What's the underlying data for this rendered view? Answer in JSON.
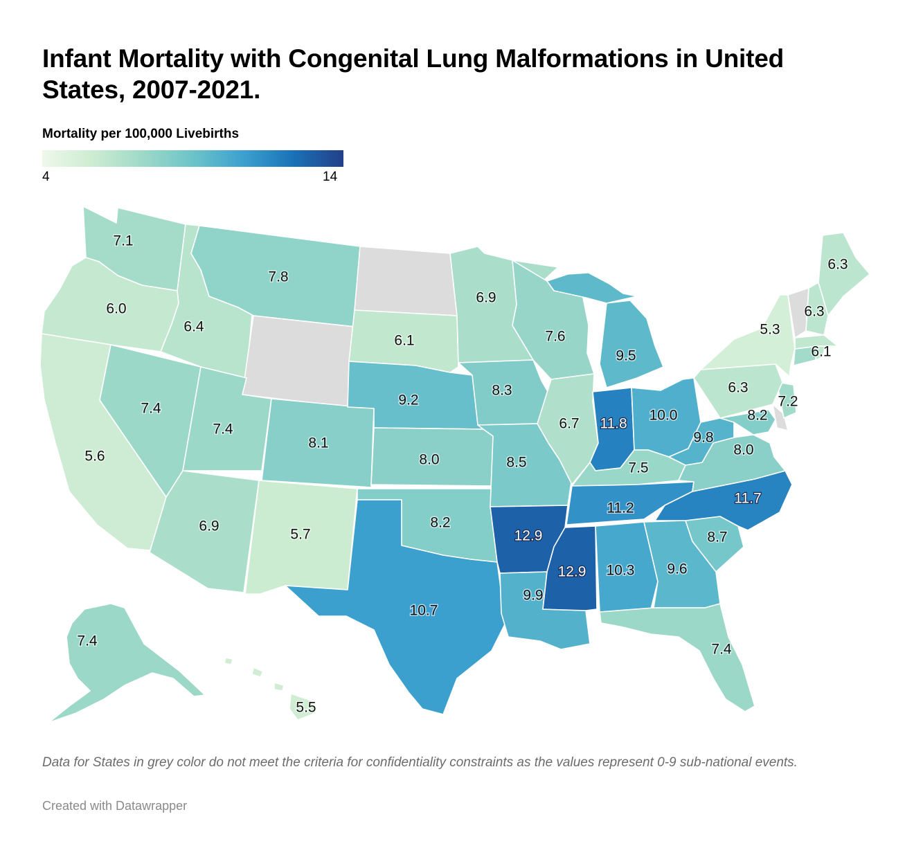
{
  "title": "Infant Mortality with Congenital Lung Malformations in United States, 2007-2021.",
  "legend": {
    "title": "Mortality per 100,000 Livebirths",
    "min_label": "4",
    "max_label": "14"
  },
  "footnote": "Data for States in grey color do not meet the criteria for confidentiality constraints as the values represent 0-9 sub-national events.",
  "credit": "Created with Datawrapper",
  "colors": {
    "no_data": "#dcdcdc",
    "scale": [
      "#eef8ea",
      "#cdecd2",
      "#9ed9c8",
      "#6cc3c9",
      "#3da1cf",
      "#1a72b7",
      "#233f8a"
    ]
  },
  "chart_data": {
    "type": "choropleth",
    "value_range": [
      4,
      14
    ],
    "states": [
      {
        "name": "Washington",
        "value": 7.1,
        "label": "7.1"
      },
      {
        "name": "Oregon",
        "value": 6.0,
        "label": "6.0"
      },
      {
        "name": "California",
        "value": 5.6,
        "label": "5.6"
      },
      {
        "name": "Nevada",
        "value": 7.4,
        "label": "7.4"
      },
      {
        "name": "Idaho",
        "value": 6.4,
        "label": "6.4"
      },
      {
        "name": "Montana",
        "value": 7.8,
        "label": "7.8"
      },
      {
        "name": "Wyoming",
        "value": null,
        "label": ""
      },
      {
        "name": "Utah",
        "value": 7.4,
        "label": "7.4"
      },
      {
        "name": "Arizona",
        "value": 6.9,
        "label": "6.9"
      },
      {
        "name": "Colorado",
        "value": 8.1,
        "label": "8.1"
      },
      {
        "name": "New Mexico",
        "value": 5.7,
        "label": "5.7"
      },
      {
        "name": "North Dakota",
        "value": null,
        "label": ""
      },
      {
        "name": "South Dakota",
        "value": 6.1,
        "label": "6.1"
      },
      {
        "name": "Nebraska",
        "value": 9.2,
        "label": "9.2"
      },
      {
        "name": "Kansas",
        "value": 8.0,
        "label": "8.0"
      },
      {
        "name": "Oklahoma",
        "value": 8.2,
        "label": "8.2"
      },
      {
        "name": "Texas",
        "value": 10.7,
        "label": "10.7"
      },
      {
        "name": "Minnesota",
        "value": 6.9,
        "label": "6.9"
      },
      {
        "name": "Iowa",
        "value": 8.3,
        "label": "8.3"
      },
      {
        "name": "Missouri",
        "value": 8.5,
        "label": "8.5"
      },
      {
        "name": "Arkansas",
        "value": 12.9,
        "label": "12.9"
      },
      {
        "name": "Louisiana",
        "value": 9.9,
        "label": "9.9"
      },
      {
        "name": "Wisconsin",
        "value": 7.6,
        "label": "7.6"
      },
      {
        "name": "Illinois",
        "value": 6.7,
        "label": "6.7"
      },
      {
        "name": "Michigan",
        "value": 9.5,
        "label": "9.5"
      },
      {
        "name": "Indiana",
        "value": 11.8,
        "label": "11.8"
      },
      {
        "name": "Ohio",
        "value": 10.0,
        "label": "10.0"
      },
      {
        "name": "Kentucky",
        "value": 7.5,
        "label": "7.5"
      },
      {
        "name": "Tennessee",
        "value": 11.2,
        "label": "11.2"
      },
      {
        "name": "Mississippi",
        "value": 12.9,
        "label": "12.9"
      },
      {
        "name": "Alabama",
        "value": 10.3,
        "label": "10.3"
      },
      {
        "name": "Georgia",
        "value": 9.6,
        "label": "9.6"
      },
      {
        "name": "Florida",
        "value": 7.4,
        "label": "7.4"
      },
      {
        "name": "South Carolina",
        "value": 8.7,
        "label": "8.7"
      },
      {
        "name": "North Carolina",
        "value": 11.7,
        "label": "11.7"
      },
      {
        "name": "Virginia",
        "value": 8.0,
        "label": "8.0"
      },
      {
        "name": "West Virginia",
        "value": 9.8,
        "label": "9.8"
      },
      {
        "name": "Maryland",
        "value": 8.2,
        "label": "8.2"
      },
      {
        "name": "Delaware",
        "value": null,
        "label": ""
      },
      {
        "name": "New Jersey",
        "value": 7.2,
        "label": "7.2"
      },
      {
        "name": "Pennsylvania",
        "value": 6.3,
        "label": "6.3"
      },
      {
        "name": "New York",
        "value": 5.3,
        "label": "5.3"
      },
      {
        "name": "Connecticut",
        "value": 7.2,
        "label": ""
      },
      {
        "name": "Rhode Island",
        "value": 6.1,
        "label": ""
      },
      {
        "name": "Massachusetts",
        "value": 6.1,
        "label": "6.1"
      },
      {
        "name": "Vermont",
        "value": null,
        "label": ""
      },
      {
        "name": "New Hampshire",
        "value": 6.3,
        "label": "6.3"
      },
      {
        "name": "Maine",
        "value": 6.3,
        "label": "6.3"
      },
      {
        "name": "Alaska",
        "value": 7.4,
        "label": "7.4"
      },
      {
        "name": "Hawaii",
        "value": 5.5,
        "label": "5.5"
      }
    ]
  }
}
